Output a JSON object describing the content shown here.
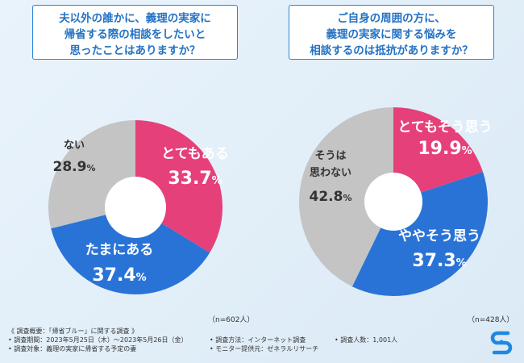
{
  "charts": {
    "left": {
      "question_lines": [
        "夫以外の誰かに、義理の実家に",
        "帰省する際の相談をしたいと",
        "思ったことはありますか？"
      ],
      "n_label": "（n=602人）"
    },
    "right": {
      "question_lines": [
        "ご自身の周囲の方に、",
        "義理の実家に関する悩みを",
        "相談するのは抵抗がありますか？"
      ],
      "n_label": "（n=428人）"
    }
  },
  "chart_data": [
    {
      "type": "pie",
      "title": "夫以外の誰かに、義理の実家に帰省する際の相談をしたいと思ったことはありますか？",
      "slices": [
        {
          "label": "とてもある",
          "value": 33.7,
          "display": "33.7%",
          "color": "#e5407a"
        },
        {
          "label": "たまにある",
          "value": 37.4,
          "display": "37.4%",
          "color": "#2a73d6"
        },
        {
          "label": "ない",
          "value": 28.9,
          "display": "28.9%",
          "color": "#c4c4c4"
        }
      ]
    },
    {
      "type": "pie",
      "title": "ご自身の周囲の方に、義理の実家に関する悩みを相談するのは抵抗がありますか？",
      "slices": [
        {
          "label": "とてもそう思う",
          "value": 19.9,
          "display": "19.9%",
          "color": "#e5407a"
        },
        {
          "label": "ややそう思う",
          "value": 37.3,
          "display": "37.3%",
          "color": "#2a73d6"
        },
        {
          "label": "そうは思わない",
          "value": 42.8,
          "display": "42.8%",
          "color": "#c4c4c4"
        }
      ]
    }
  ],
  "footer": {
    "overview": "《 調査概要：「帰省ブルー」に関する調査 》",
    "period": "• 調査期間：2023年5月25日（木）～2023年5月26日（金）",
    "method": "• 調査方法：インターネット調査",
    "count": "• 調査人数：1,001人",
    "target": "• 調査対象：義理の実家に帰省する予定の妻",
    "provider": "• モニター提供元：ゼネラルリサーチ"
  }
}
